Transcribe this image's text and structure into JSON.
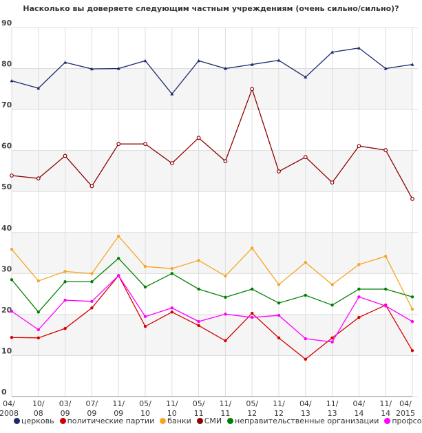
{
  "chart_data": {
    "type": "line",
    "title": "Насколько вы доверяете следующим частным учреждениям (очень сильно/сильно)?",
    "categories": [
      [
        "04/",
        "2008"
      ],
      [
        "10/",
        "08"
      ],
      [
        "03/",
        "09"
      ],
      [
        "07/",
        "09"
      ],
      [
        "11/",
        "09"
      ],
      [
        "05/",
        "10"
      ],
      [
        "11/",
        "10"
      ],
      [
        "05/",
        "11"
      ],
      [
        "11/",
        "11"
      ],
      [
        "05/",
        "12"
      ],
      [
        "11/",
        "12"
      ],
      [
        "04/",
        "13"
      ],
      [
        "11/",
        "13"
      ],
      [
        "04/",
        "14"
      ],
      [
        "11/",
        "14"
      ],
      [
        "04/",
        "2015"
      ]
    ],
    "ylim": [
      0,
      90
    ],
    "yticks": [
      0,
      10,
      20,
      30,
      40,
      50,
      60,
      70,
      80,
      90
    ],
    "grid": true,
    "legend": "bottom",
    "series": [
      {
        "name": "церковь",
        "color": "#1a2a6c",
        "marker": "triangle",
        "values": [
          77,
          75.2,
          81.5,
          79.9,
          80,
          81.9,
          73.8,
          81.9,
          80,
          81,
          82,
          77.9,
          84,
          85,
          80,
          81
        ]
      },
      {
        "name": "политические партии",
        "color": "#d40000",
        "marker": "dot",
        "values": [
          14.4,
          14.3,
          16.6,
          21.6,
          29.5,
          17.1,
          20.6,
          17.3,
          13.6,
          20.3,
          14.3,
          9.1,
          14.3,
          19.3,
          22.3,
          11.2
        ]
      },
      {
        "name": "банки",
        "color": "#f5a623",
        "marker": "dot",
        "values": [
          35.9,
          28.2,
          30.5,
          30,
          39.1,
          31.7,
          31.2,
          33.2,
          29.4,
          36.2,
          27.3,
          32.7,
          27.3,
          32.2,
          34.2,
          21.3
        ]
      },
      {
        "name": "СМИ",
        "color": "#8b0000",
        "marker": "circle",
        "values": [
          53.9,
          53.2,
          58.7,
          51.3,
          61.6,
          61.6,
          56.9,
          63.1,
          57.4,
          75,
          54.9,
          58.4,
          52.2,
          61.1,
          60.1,
          48.2
        ]
      },
      {
        "name": "неправительственные организации",
        "color": "#008000",
        "marker": "dot",
        "values": [
          28.5,
          20.6,
          28,
          28,
          33.7,
          26.7,
          30,
          26.2,
          24.2,
          26.2,
          22.8,
          24.7,
          22.3,
          26.2,
          26.2,
          24.3
        ]
      },
      {
        "name": "профсоюзы",
        "color": "#ff00ff",
        "marker": "dot",
        "values": [
          20.8,
          16.3,
          23.5,
          23.2,
          29.5,
          19.5,
          21.6,
          18.3,
          20.1,
          19.3,
          19.8,
          14.1,
          13.3,
          24.3,
          22.1,
          18.3
        ]
      }
    ]
  }
}
